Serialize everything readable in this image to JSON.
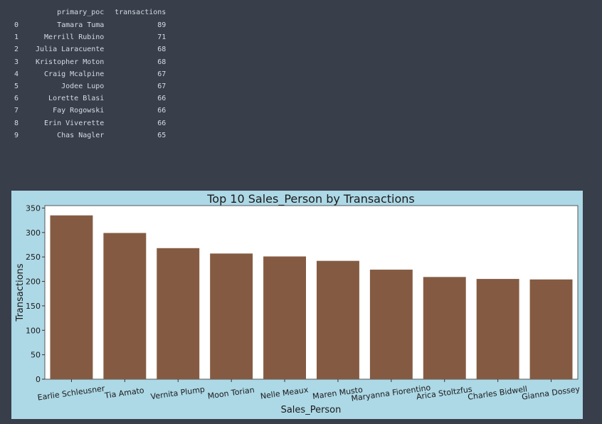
{
  "dataframe": {
    "columns": [
      "primary_poc",
      "transactions"
    ],
    "rows": [
      {
        "index": "0",
        "primary_poc": "Tamara Tuma",
        "transactions": "89"
      },
      {
        "index": "1",
        "primary_poc": "Merrill Rubino",
        "transactions": "71"
      },
      {
        "index": "2",
        "primary_poc": "Julia Laracuente",
        "transactions": "68"
      },
      {
        "index": "3",
        "primary_poc": "Kristopher Moton",
        "transactions": "68"
      },
      {
        "index": "4",
        "primary_poc": "Craig Mcalpine",
        "transactions": "67"
      },
      {
        "index": "5",
        "primary_poc": "Jodee Lupo",
        "transactions": "67"
      },
      {
        "index": "6",
        "primary_poc": "Lorette Blasi",
        "transactions": "66"
      },
      {
        "index": "7",
        "primary_poc": "Fay Rogowski",
        "transactions": "66"
      },
      {
        "index": "8",
        "primary_poc": "Erin Viverette",
        "transactions": "66"
      },
      {
        "index": "9",
        "primary_poc": "Chas Nagler",
        "transactions": "65"
      }
    ]
  },
  "chart_data": {
    "type": "bar",
    "title": "Top 10 Sales_Person by Transactions",
    "xlabel": "Sales_Person",
    "ylabel": "Transactions",
    "categories": [
      "Earlie Schleusner",
      "Tia Amato",
      "Vernita Plump",
      "Moon Torian",
      "Nelle Meaux",
      "Maren Musto",
      "Maryanna Fiorentino",
      "Arica Stoltzfus",
      "Charles Bidwell",
      "Gianna Dossey"
    ],
    "values": [
      335,
      299,
      268,
      257,
      251,
      242,
      224,
      209,
      205,
      204
    ],
    "ylim": [
      0,
      355
    ],
    "yticks": [
      0,
      50,
      100,
      150,
      200,
      250,
      300,
      350
    ],
    "grid": false,
    "bar_color": "#845b42",
    "background_color": "#add8e6",
    "plot_background_color": "#ffffff"
  }
}
